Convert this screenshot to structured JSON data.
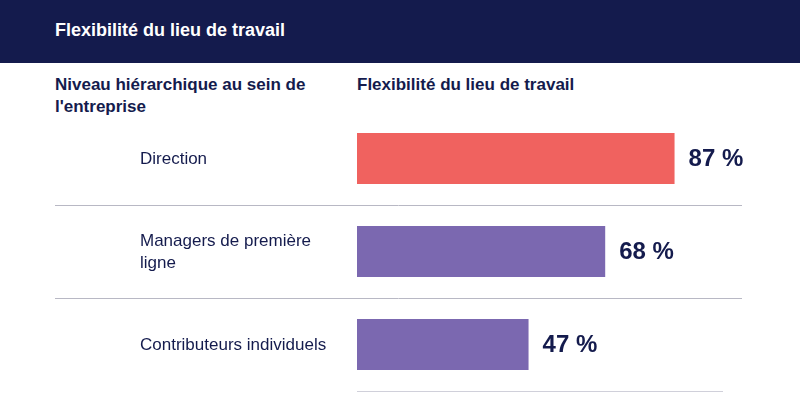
{
  "chart_data": {
    "type": "bar",
    "orientation": "horizontal",
    "title": "Flexibilité du lieu de travail",
    "ylabel": "Niveau hiérarchique au sein de l'entreprise",
    "xlabel": "Flexibilité du lieu de travail",
    "categories": [
      "Direction",
      "Managers de première ligne",
      "Contributeurs individuels"
    ],
    "values": [
      87,
      68,
      47
    ],
    "value_labels": [
      "87 %",
      "68 %",
      "47 %"
    ],
    "colors": [
      "#f0625f",
      "#7b68b0",
      "#7b68b0"
    ],
    "xlim": [
      0,
      100
    ],
    "grid": false,
    "data_labels": true,
    "tick_labels": false
  }
}
